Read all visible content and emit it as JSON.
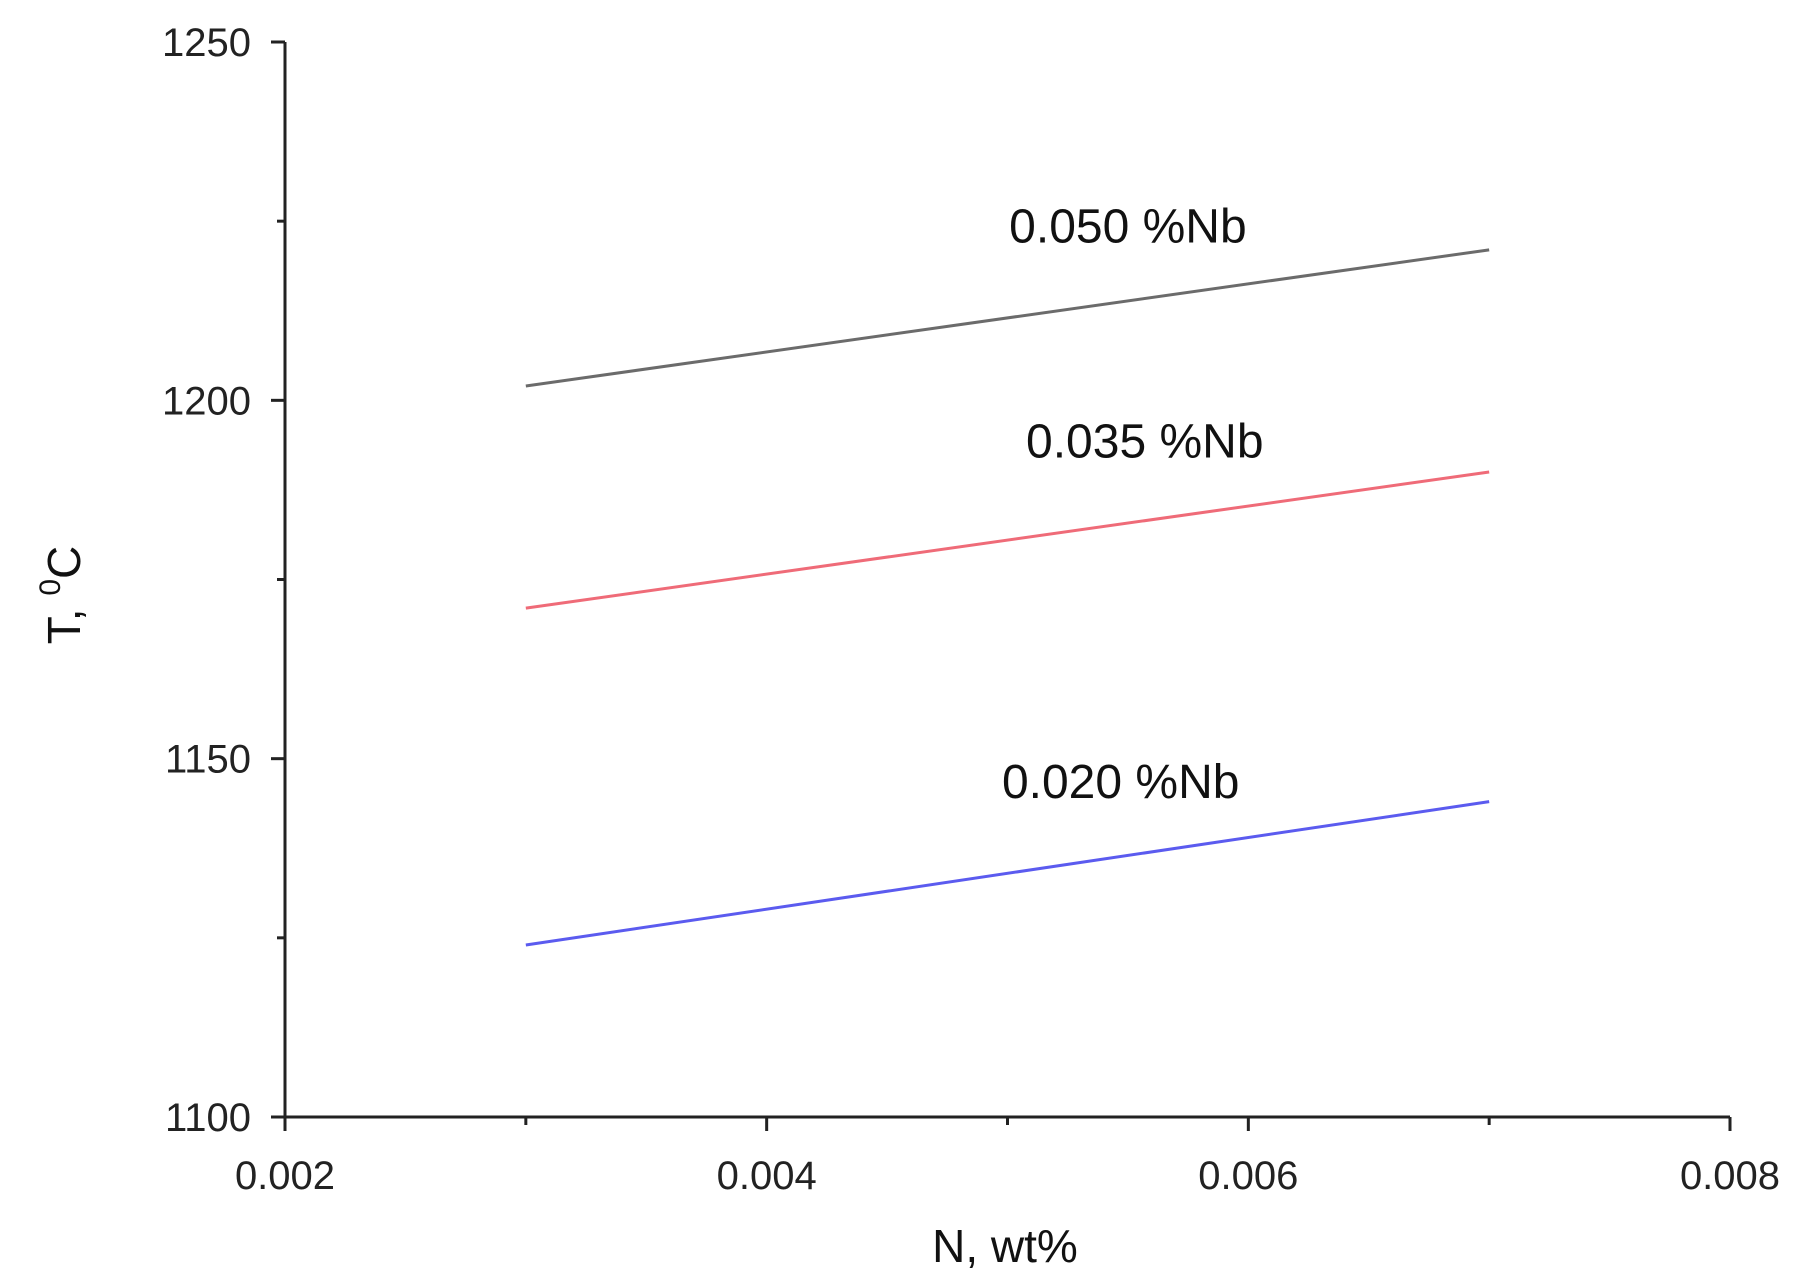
{
  "chart_data": {
    "type": "line",
    "xlabel": "N, wt%",
    "ylabel": {
      "prefix": "T, ",
      "superscript": "0",
      "suffix": "C"
    },
    "xlim": [
      0.002,
      0.008
    ],
    "ylim": [
      1100,
      1250
    ],
    "x_ticks": [
      0.002,
      0.004,
      0.006,
      0.008
    ],
    "x_tick_labels": [
      "0.002",
      "0.004",
      "0.006",
      "0.008"
    ],
    "x_minor_ticks": [
      0.003,
      0.005,
      0.007
    ],
    "y_ticks": [
      1100,
      1150,
      1200,
      1250
    ],
    "y_tick_labels": [
      "1100",
      "1150",
      "1200",
      "1250"
    ],
    "y_minor_ticks": [
      1125,
      1175,
      1225
    ],
    "grid": false,
    "series": [
      {
        "label": "0.050 %Nb",
        "color": "#6b6b6b",
        "x": [
          0.003,
          0.007
        ],
        "y": [
          1202,
          1221
        ],
        "label_at": [
          0.0055,
          1222
        ]
      },
      {
        "label": "0.035 %Nb",
        "color": "#ef6b78",
        "x": [
          0.003,
          0.007
        ],
        "y": [
          1171,
          1190
        ],
        "label_at": [
          0.00557,
          1192
        ]
      },
      {
        "label": "0.020 %Nb",
        "color": "#5b5bef",
        "x": [
          0.003,
          0.007
        ],
        "y": [
          1124,
          1144
        ],
        "label_at": [
          0.00547,
          1144.5
        ]
      }
    ]
  }
}
